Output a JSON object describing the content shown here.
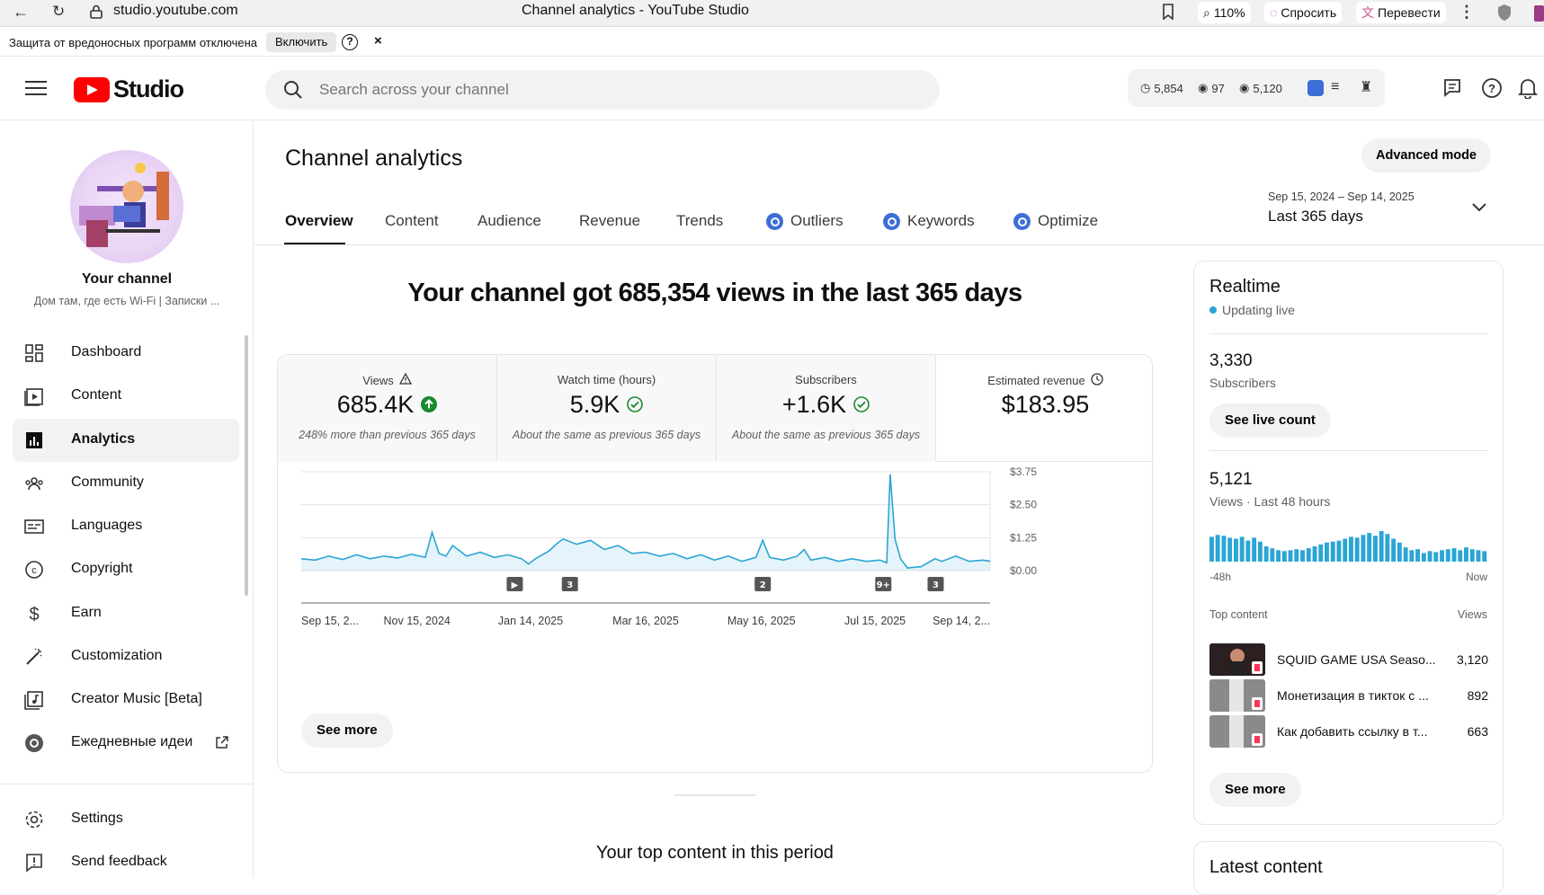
{
  "browser": {
    "url": "studio.youtube.com",
    "tab_title": "Channel analytics - YouTube Studio",
    "zoom": "110%",
    "ask_label": "Спросить",
    "translate_label": "Перевести"
  },
  "infobar": {
    "message": "Защита от вредоносных программ отключена",
    "enable_label": "Включить",
    "help": "?",
    "close": "×"
  },
  "header": {
    "logo_text": "Studio",
    "search_placeholder": "Search across your channel",
    "stats": {
      "watch": "5,854",
      "views_a": "97",
      "views_b": "5,120"
    }
  },
  "sidebar": {
    "channel_name": "Your channel",
    "channel_desc": "Дом там, где есть Wi-Fi | Записки ...",
    "items": [
      {
        "label": "Dashboard",
        "icon": "dashboard-icon"
      },
      {
        "label": "Content",
        "icon": "content-icon"
      },
      {
        "label": "Analytics",
        "icon": "analytics-icon",
        "active": true
      },
      {
        "label": "Community",
        "icon": "community-icon"
      },
      {
        "label": "Languages",
        "icon": "languages-icon"
      },
      {
        "label": "Copyright",
        "icon": "copyright-icon"
      },
      {
        "label": "Earn",
        "icon": "earn-icon"
      },
      {
        "label": "Customization",
        "icon": "customization-icon"
      },
      {
        "label": "Creator Music [Beta]",
        "icon": "creator-music-icon"
      },
      {
        "label": "Ежедневные идеи",
        "icon": "ideas-icon"
      }
    ],
    "settings_label": "Settings",
    "feedback_label": "Send feedback"
  },
  "main": {
    "title": "Channel analytics",
    "advanced_mode": "Advanced mode",
    "tabs": [
      {
        "label": "Overview",
        "active": true
      },
      {
        "label": "Content"
      },
      {
        "label": "Audience"
      },
      {
        "label": "Revenue"
      },
      {
        "label": "Trends"
      },
      {
        "label": "Outliers",
        "icon": "vidiq-icon"
      },
      {
        "label": "Keywords",
        "icon": "vidiq-icon"
      },
      {
        "label": "Optimize",
        "icon": "vidiq-icon"
      }
    ],
    "date_range": "Sep 15, 2024 – Sep 14, 2025",
    "date_label": "Last 365 days",
    "headline": "Your channel got 685,354 views in the last 365 days",
    "metrics": [
      {
        "title": "Views",
        "value": "685.4K",
        "compare": "248% more than previous 365 days",
        "status": "up"
      },
      {
        "title": "Watch time (hours)",
        "value": "5.9K",
        "compare": "About the same as previous 365 days",
        "status": "same"
      },
      {
        "title": "Subscribers",
        "value": "+1.6K",
        "compare": "About the same as previous 365 days",
        "status": "same"
      },
      {
        "title": "Estimated revenue",
        "value": "$183.95",
        "compare": "",
        "status": "clock"
      }
    ],
    "see_more": "See more",
    "top_content_title": "Your top content in this period"
  },
  "chart_data": {
    "type": "line",
    "series_metric": "Estimated revenue",
    "yticks": [
      "$3.75",
      "$2.50",
      "$1.25",
      "$0.00"
    ],
    "ylim": [
      0,
      3.75
    ],
    "xticks": [
      "Sep 15, 2...",
      "Nov 15, 2024",
      "Jan 14, 2025",
      "Mar 16, 2025",
      "May 16, 2025",
      "Jul 15, 2025",
      "Sep 14, 2..."
    ],
    "markers": [
      {
        "label": "▶",
        "pos": 0.31
      },
      {
        "label": "3",
        "pos": 0.39
      },
      {
        "label": "2",
        "pos": 0.67
      },
      {
        "label": "9+",
        "pos": 0.845
      },
      {
        "label": "3",
        "pos": 0.921
      }
    ],
    "points": [
      [
        0.0,
        0.45
      ],
      [
        0.02,
        0.4
      ],
      [
        0.04,
        0.55
      ],
      [
        0.06,
        0.42
      ],
      [
        0.08,
        0.6
      ],
      [
        0.1,
        0.45
      ],
      [
        0.12,
        0.55
      ],
      [
        0.14,
        0.48
      ],
      [
        0.16,
        0.62
      ],
      [
        0.18,
        0.5
      ],
      [
        0.19,
        1.45
      ],
      [
        0.2,
        0.65
      ],
      [
        0.21,
        0.55
      ],
      [
        0.22,
        0.95
      ],
      [
        0.24,
        0.55
      ],
      [
        0.26,
        0.7
      ],
      [
        0.28,
        0.5
      ],
      [
        0.3,
        0.6
      ],
      [
        0.32,
        0.45
      ],
      [
        0.33,
        0.25
      ],
      [
        0.34,
        0.45
      ],
      [
        0.36,
        0.75
      ],
      [
        0.37,
        1.0
      ],
      [
        0.38,
        1.2
      ],
      [
        0.4,
        1.0
      ],
      [
        0.42,
        1.15
      ],
      [
        0.44,
        0.8
      ],
      [
        0.46,
        0.95
      ],
      [
        0.48,
        0.65
      ],
      [
        0.5,
        0.7
      ],
      [
        0.52,
        0.55
      ],
      [
        0.54,
        0.65
      ],
      [
        0.56,
        0.45
      ],
      [
        0.58,
        0.6
      ],
      [
        0.6,
        0.4
      ],
      [
        0.62,
        0.55
      ],
      [
        0.64,
        0.35
      ],
      [
        0.66,
        0.5
      ],
      [
        0.67,
        1.15
      ],
      [
        0.68,
        0.5
      ],
      [
        0.7,
        0.4
      ],
      [
        0.72,
        0.55
      ],
      [
        0.73,
        0.8
      ],
      [
        0.74,
        0.4
      ],
      [
        0.76,
        0.5
      ],
      [
        0.78,
        0.35
      ],
      [
        0.8,
        0.45
      ],
      [
        0.82,
        0.35
      ],
      [
        0.84,
        0.4
      ],
      [
        0.85,
        0.3
      ],
      [
        0.855,
        3.65
      ],
      [
        0.862,
        1.2
      ],
      [
        0.87,
        0.45
      ],
      [
        0.88,
        0.1
      ],
      [
        0.9,
        0.15
      ],
      [
        0.92,
        0.45
      ],
      [
        0.93,
        0.35
      ],
      [
        0.95,
        0.55
      ],
      [
        0.97,
        0.35
      ],
      [
        0.99,
        0.4
      ],
      [
        1.0,
        0.35
      ]
    ]
  },
  "realtime": {
    "title": "Realtime",
    "status": "Updating live",
    "subs_value": "3,330",
    "subs_label": "Subscribers",
    "live_count": "See live count",
    "views_value": "5,121",
    "views_label": "Views · Last 48 hours",
    "bars": [
      26,
      28,
      27,
      25,
      24,
      26,
      22,
      25,
      21,
      16,
      14,
      12,
      11,
      12,
      13,
      12,
      14,
      16,
      18,
      20,
      21,
      22,
      24,
      26,
      25,
      28,
      30,
      27,
      32,
      29,
      24,
      20,
      15,
      12,
      13,
      9,
      11,
      10,
      12,
      13,
      14,
      12,
      15,
      13,
      12,
      11
    ],
    "axis_left": "-48h",
    "axis_right": "Now",
    "top_content_label": "Top content",
    "views_col": "Views",
    "items": [
      {
        "title": "SQUID GAME USA Seaso...",
        "views": "3,120"
      },
      {
        "title": "Монетизация в тикток с ...",
        "views": "892"
      },
      {
        "title": "Как добавить ссылку в т...",
        "views": "663"
      }
    ],
    "see_more": "See more"
  },
  "latest": {
    "title": "Latest content"
  }
}
